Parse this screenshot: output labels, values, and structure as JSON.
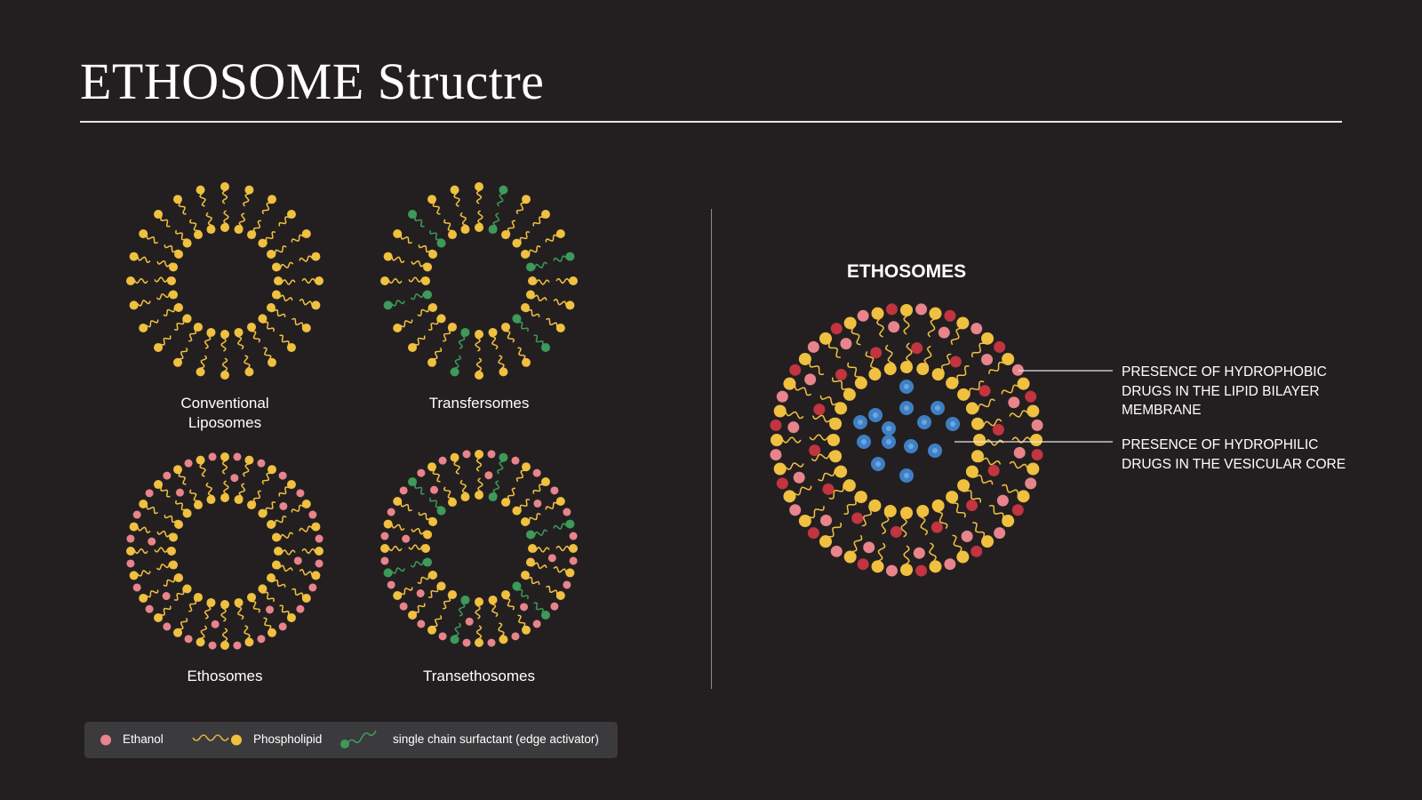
{
  "title": "ETHOSOME Structre",
  "vesicles": [
    {
      "label": "Conventional Liposomes",
      "line1": "Conventional",
      "line2": "Liposomes",
      "components": [
        "phospholipid"
      ]
    },
    {
      "label": "Transfersomes",
      "components": [
        "phospholipid",
        "surfactant"
      ]
    },
    {
      "label": "Ethosomes",
      "components": [
        "phospholipid",
        "ethanol"
      ]
    },
    {
      "label": "Transethosomes",
      "components": [
        "phospholipid",
        "ethanol",
        "surfactant"
      ]
    }
  ],
  "detail": {
    "title": "ETHOSOMES",
    "callout_hydrophobic": [
      "PRESENCE OF HYDROPHOBIC",
      "DRUGS IN THE LIPID BILAYER",
      "MEMBRANE"
    ],
    "callout_hydrophilic": [
      "PRESENCE OF HYDROPHILIC",
      "DRUGS IN THE VESICULAR CORE"
    ]
  },
  "legend": {
    "ethanol": "Ethanol",
    "phospholipid": "Phospholipid",
    "surfactant": "single chain surfactant (edge activator)"
  },
  "colors": {
    "background": "#231f20",
    "phospholipid": "#f0c040",
    "ethanol": "#e8848c",
    "hydrophobic_drug": "#c2343f",
    "surfactant": "#3d9a5a",
    "hydrophilic_drug": "#3f7fc4"
  }
}
